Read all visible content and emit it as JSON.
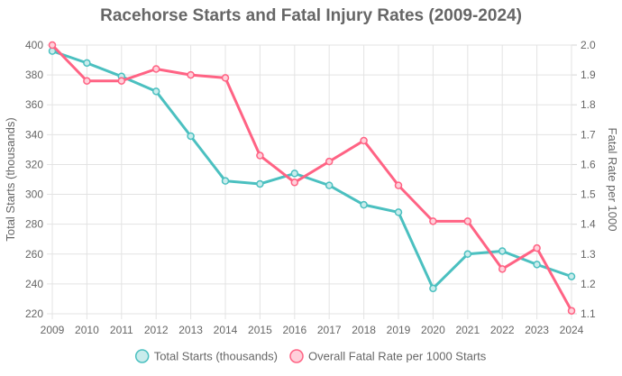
{
  "chart_data": {
    "type": "line",
    "title": "Racehorse Starts and Fatal Injury Rates (2009-2024)",
    "x": [
      "2009",
      "2010",
      "2011",
      "2012",
      "2013",
      "2014",
      "2015",
      "2016",
      "2017",
      "2018",
      "2019",
      "2020",
      "2021",
      "2022",
      "2023",
      "2024"
    ],
    "y_left": {
      "label": "Total Starts (thousands)",
      "lim": [
        220,
        400
      ],
      "ticks": [
        220,
        240,
        260,
        280,
        300,
        320,
        340,
        360,
        380,
        400
      ]
    },
    "y_right": {
      "label": "Fatal Rate per 1000",
      "lim": [
        1.1,
        2.0
      ],
      "ticks": [
        "1.1",
        "1.2",
        "1.3",
        "1.4",
        "1.5",
        "1.6",
        "1.7",
        "1.8",
        "1.9",
        "2.0"
      ]
    },
    "series": [
      {
        "name": "Total Starts (thousands)",
        "axis": "left",
        "color": "#4bc0c0",
        "fill": "#c9ecec",
        "values": [
          396,
          388,
          379,
          369,
          339,
          309,
          307,
          314,
          306,
          293,
          288,
          237,
          260,
          262,
          253,
          245
        ]
      },
      {
        "name": "Overall Fatal Rate per 1000 Starts",
        "axis": "right",
        "color": "#ff6384",
        "fill": "#ffd0da",
        "values": [
          2.0,
          1.88,
          1.88,
          1.92,
          1.9,
          1.89,
          1.63,
          1.54,
          1.61,
          1.68,
          1.53,
          1.41,
          1.41,
          1.25,
          1.32,
          1.11
        ]
      }
    ],
    "grid": true,
    "legend": "bottom"
  }
}
